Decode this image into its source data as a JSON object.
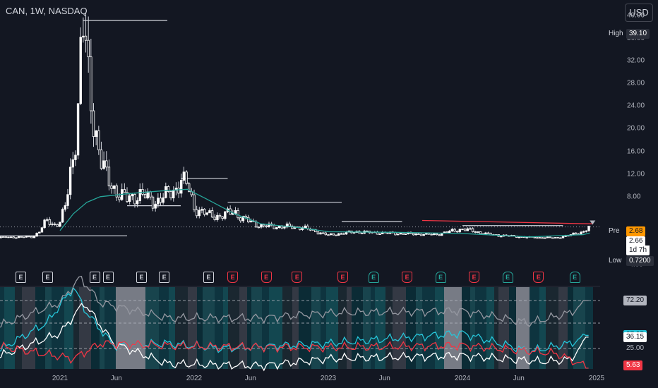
{
  "header": {
    "title": "CAN, 1W, NASDAQ",
    "currency_button": "USD"
  },
  "price_axis": {
    "ticks": [
      {
        "label": "40.00",
        "value": 40
      },
      {
        "label": "36.00",
        "value": 36
      },
      {
        "label": "32.00",
        "value": 32
      },
      {
        "label": "28.00",
        "value": 28
      },
      {
        "label": "24.00",
        "value": 24
      },
      {
        "label": "20.00",
        "value": 20
      },
      {
        "label": "16.00",
        "value": 16
      },
      {
        "label": "12.00",
        "value": 12
      },
      {
        "label": "8.00",
        "value": 8
      },
      {
        "label": "-4.00",
        "value": -4
      }
    ]
  },
  "markers": {
    "high_label": "High",
    "high_value": "39.10",
    "pre_label": "Pre",
    "pre_value": "2.68",
    "last_value": "2.66",
    "countdown": "1d 7h",
    "low_label": "Low",
    "low_value": "0.7200"
  },
  "indicator_values": [
    {
      "text": "72.20",
      "color": "#b2b5be",
      "value": 72.2
    },
    {
      "text": "37.95",
      "color": "#26c6da",
      "value": 37.95
    },
    {
      "text": "36.15",
      "color": "#ffffff",
      "value": 36.15
    },
    {
      "text": "25.00",
      "color": "#787b86",
      "value": 25
    },
    {
      "text": "5.63",
      "color": "#f23645",
      "value": 5.63
    }
  ],
  "time_axis": [
    {
      "label": "2021",
      "t": 0.0
    },
    {
      "label": "Jun",
      "t": 0.42
    },
    {
      "label": "2022",
      "t": 1.0
    },
    {
      "label": "Jun",
      "t": 1.42
    },
    {
      "label": "2023",
      "t": 2.0
    },
    {
      "label": "Jun",
      "t": 2.42
    },
    {
      "label": "2024",
      "t": 3.0
    },
    {
      "label": "Jun",
      "t": 3.42
    },
    {
      "label": "2025",
      "t": 4.0
    }
  ],
  "events": [
    {
      "t": -0.3,
      "kind": "past"
    },
    {
      "t": -0.1,
      "kind": "past"
    },
    {
      "t": 0.25,
      "kind": "past"
    },
    {
      "t": 0.35,
      "kind": "past"
    },
    {
      "t": 0.6,
      "kind": "past"
    },
    {
      "t": 0.77,
      "kind": "past"
    },
    {
      "t": 1.1,
      "kind": "past"
    },
    {
      "t": 1.28,
      "kind": "miss"
    },
    {
      "t": 1.53,
      "kind": "miss"
    },
    {
      "t": 1.76,
      "kind": "miss"
    },
    {
      "t": 2.1,
      "kind": "miss"
    },
    {
      "t": 2.33,
      "kind": "beat"
    },
    {
      "t": 2.58,
      "kind": "miss"
    },
    {
      "t": 2.83,
      "kind": "beat"
    },
    {
      "t": 3.08,
      "kind": "miss"
    },
    {
      "t": 3.33,
      "kind": "beat"
    },
    {
      "t": 3.56,
      "kind": "miss"
    },
    {
      "t": 3.83,
      "kind": "beat"
    }
  ],
  "events_label": "E",
  "colors": {
    "up": "#ffffff",
    "down": "#ffffff",
    "ma": "#26a69a",
    "line": "#f23645",
    "bg": "#131722",
    "grid": "#2a2e39"
  },
  "chart_data": {
    "type": "candlestick",
    "title": "CAN, 1W, NASDAQ",
    "ylim": [
      -4,
      40
    ],
    "price_points": [
      {
        "t": -0.5,
        "v": 0.8
      },
      {
        "t": -0.2,
        "v": 0.9
      },
      {
        "t": -0.15,
        "v": 2.0
      },
      {
        "t": -0.1,
        "v": 3.8
      },
      {
        "t": -0.05,
        "v": 3.0
      },
      {
        "t": 0.0,
        "v": 3.5
      },
      {
        "t": 0.05,
        "v": 7.2
      },
      {
        "t": 0.1,
        "v": 16.0
      },
      {
        "t": 0.13,
        "v": 22.0
      },
      {
        "t": 0.16,
        "v": 36.0
      },
      {
        "t": 0.18,
        "v": 39.1
      },
      {
        "t": 0.2,
        "v": 30.0
      },
      {
        "t": 0.23,
        "v": 25.0
      },
      {
        "t": 0.27,
        "v": 19.0
      },
      {
        "t": 0.3,
        "v": 15.0
      },
      {
        "t": 0.35,
        "v": 11.0
      },
      {
        "t": 0.42,
        "v": 9.0
      },
      {
        "t": 0.5,
        "v": 7.5
      },
      {
        "t": 0.6,
        "v": 8.5
      },
      {
        "t": 0.7,
        "v": 7.0
      },
      {
        "t": 0.85,
        "v": 9.0
      },
      {
        "t": 0.9,
        "v": 11.0
      },
      {
        "t": 0.95,
        "v": 10.0
      },
      {
        "t": 1.0,
        "v": 6.0
      },
      {
        "t": 1.1,
        "v": 4.8
      },
      {
        "t": 1.2,
        "v": 4.5
      },
      {
        "t": 1.3,
        "v": 5.5
      },
      {
        "t": 1.35,
        "v": 4.2
      },
      {
        "t": 1.5,
        "v": 2.8
      },
      {
        "t": 1.8,
        "v": 2.6
      },
      {
        "t": 2.0,
        "v": 1.2
      },
      {
        "t": 2.2,
        "v": 1.8
      },
      {
        "t": 2.5,
        "v": 1.5
      },
      {
        "t": 2.8,
        "v": 1.3
      },
      {
        "t": 3.0,
        "v": 2.3
      },
      {
        "t": 3.2,
        "v": 1.3
      },
      {
        "t": 3.5,
        "v": 0.8
      },
      {
        "t": 3.7,
        "v": 0.72
      },
      {
        "t": 3.8,
        "v": 1.2
      },
      {
        "t": 3.9,
        "v": 1.8
      },
      {
        "t": 3.95,
        "v": 2.66
      }
    ],
    "ma_points": [
      {
        "t": 0.0,
        "v": 2.0
      },
      {
        "t": 0.1,
        "v": 5.0
      },
      {
        "t": 0.2,
        "v": 7.0
      },
      {
        "t": 0.3,
        "v": 8.0
      },
      {
        "t": 0.5,
        "v": 8.5
      },
      {
        "t": 0.75,
        "v": 9.0
      },
      {
        "t": 0.95,
        "v": 9.3
      },
      {
        "t": 1.1,
        "v": 7.5
      },
      {
        "t": 1.3,
        "v": 5.0
      },
      {
        "t": 1.5,
        "v": 3.2
      },
      {
        "t": 1.8,
        "v": 2.5
      },
      {
        "t": 2.0,
        "v": 1.8
      },
      {
        "t": 2.5,
        "v": 1.7
      },
      {
        "t": 3.0,
        "v": 1.5
      },
      {
        "t": 3.5,
        "v": 0.9
      },
      {
        "t": 3.9,
        "v": 1.3
      },
      {
        "t": 3.95,
        "v": 1.6
      }
    ],
    "levels": [
      {
        "value": 39.1,
        "t_start": 0.17,
        "t_end": 0.8
      },
      {
        "value": 11.2,
        "t_start": 0.9,
        "t_end": 1.25
      },
      {
        "value": 7.0,
        "t_start": 1.25,
        "t_end": 2.1
      },
      {
        "value": 6.4,
        "t_start": 0.5,
        "t_end": 0.9
      },
      {
        "value": 3.6,
        "t_start": 2.1,
        "t_end": 2.55
      },
      {
        "value": 2.9,
        "t_start": 3.0,
        "t_end": 3.75
      },
      {
        "value": 1.1,
        "t_start": -0.5,
        "t_end": 0.5
      }
    ],
    "trend_line": {
      "t_start": 2.7,
      "v_start": 3.8,
      "t_end": 3.97,
      "v_end": 3.2
    },
    "oscillator": {
      "ylim": [
        0,
        100
      ],
      "bands": [
        72.2,
        50,
        25
      ],
      "series": [
        {
          "name": "",
          "color": "#26c6da",
          "points": [
            {
              "t": -0.5,
              "v": 20
            },
            {
              "t": -0.1,
              "v": 50
            },
            {
              "t": 0.1,
              "v": 85
            },
            {
              "t": 0.2,
              "v": 60
            },
            {
              "t": 0.4,
              "v": 28
            },
            {
              "t": 0.8,
              "v": 30
            },
            {
              "t": 1.2,
              "v": 25
            },
            {
              "t": 2.0,
              "v": 30
            },
            {
              "t": 3.0,
              "v": 40
            },
            {
              "t": 3.5,
              "v": 22
            },
            {
              "t": 3.8,
              "v": 30
            },
            {
              "t": 3.95,
              "v": 37.95
            }
          ]
        },
        {
          "name": "",
          "color": "#ffffff",
          "points": [
            {
              "t": -0.5,
              "v": 15
            },
            {
              "t": 0.0,
              "v": 40
            },
            {
              "t": 0.18,
              "v": 70
            },
            {
              "t": 0.4,
              "v": 30
            },
            {
              "t": 0.8,
              "v": 10
            },
            {
              "t": 1.5,
              "v": 8
            },
            {
              "t": 2.0,
              "v": 15
            },
            {
              "t": 3.0,
              "v": 18
            },
            {
              "t": 3.6,
              "v": 12
            },
            {
              "t": 3.8,
              "v": 14
            },
            {
              "t": 3.95,
              "v": 36.15
            }
          ]
        },
        {
          "name": "",
          "color": "#9598a1",
          "points": [
            {
              "t": -0.5,
              "v": 45
            },
            {
              "t": 0.0,
              "v": 70
            },
            {
              "t": 0.15,
              "v": 95
            },
            {
              "t": 0.3,
              "v": 70
            },
            {
              "t": 0.8,
              "v": 55
            },
            {
              "t": 1.5,
              "v": 55
            },
            {
              "t": 2.0,
              "v": 60
            },
            {
              "t": 3.0,
              "v": 62
            },
            {
              "t": 3.5,
              "v": 50
            },
            {
              "t": 3.8,
              "v": 60
            },
            {
              "t": 3.95,
              "v": 72.2
            }
          ]
        },
        {
          "name": "",
          "color": "#f23645",
          "points": [
            {
              "t": -0.5,
              "v": 28
            },
            {
              "t": 0.1,
              "v": 15
            },
            {
              "t": 0.3,
              "v": 30
            },
            {
              "t": 1.0,
              "v": 27
            },
            {
              "t": 2.0,
              "v": 26
            },
            {
              "t": 3.0,
              "v": 28
            },
            {
              "t": 3.7,
              "v": 20
            },
            {
              "t": 3.95,
              "v": 5.63
            }
          ]
        }
      ]
    }
  }
}
